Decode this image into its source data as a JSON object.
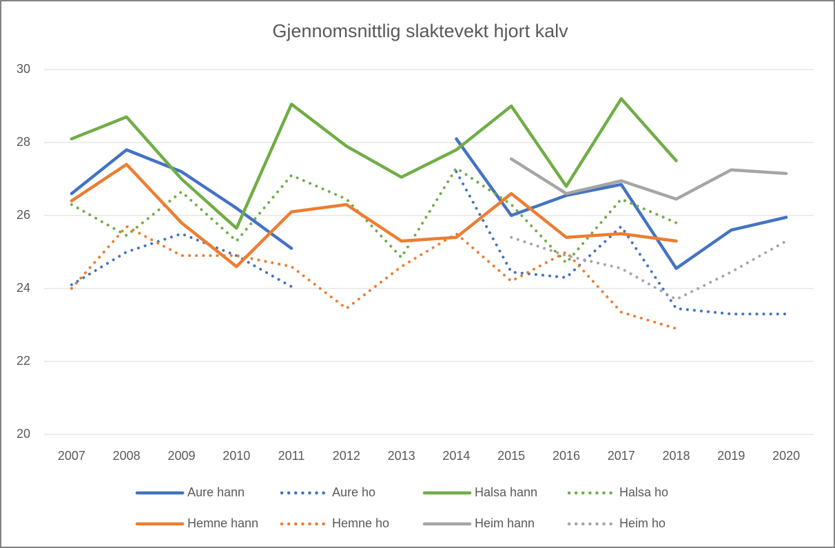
{
  "chart_data": {
    "type": "line",
    "title": "Gjennomsnittlig slaktevekt hjort kalv",
    "categories": [
      "2007",
      "2008",
      "2009",
      "2010",
      "2011",
      "2012",
      "2013",
      "2014",
      "2015",
      "2016",
      "2017",
      "2018",
      "2019",
      "2020"
    ],
    "ylim": [
      20,
      30
    ],
    "yticks": [
      20,
      22,
      24,
      26,
      28,
      30
    ],
    "grid": true,
    "legend": "bottom",
    "series": [
      {
        "name": "Aure hann",
        "color": "#4472c4",
        "dash": "solid",
        "values": [
          26.6,
          27.8,
          27.2,
          26.2,
          25.1,
          null,
          null,
          28.1,
          26.0,
          26.55,
          26.85,
          24.55,
          25.6,
          25.95
        ]
      },
      {
        "name": "Aure ho",
        "color": "#4472c4",
        "dash": "dot",
        "values": [
          24.1,
          25.0,
          25.5,
          24.9,
          24.05,
          null,
          null,
          27.2,
          24.45,
          24.3,
          25.7,
          23.45,
          23.3,
          23.3
        ]
      },
      {
        "name": "Halsa hann",
        "color": "#70ad47",
        "dash": "solid",
        "values": [
          28.1,
          28.7,
          27.0,
          25.65,
          29.05,
          27.9,
          27.05,
          27.8,
          29.0,
          26.8,
          29.2,
          27.5,
          null,
          null
        ]
      },
      {
        "name": "Halsa ho",
        "color": "#70ad47",
        "dash": "dot",
        "values": [
          26.3,
          25.45,
          26.65,
          25.3,
          27.1,
          26.45,
          24.85,
          27.3,
          26.3,
          24.7,
          26.45,
          25.8,
          null,
          null
        ]
      },
      {
        "name": "Hemne hann",
        "color": "#ed7d31",
        "dash": "solid",
        "values": [
          26.4,
          27.4,
          25.8,
          24.6,
          26.1,
          26.3,
          25.3,
          25.4,
          26.6,
          25.4,
          25.5,
          25.3,
          null,
          null
        ]
      },
      {
        "name": "Hemne ho",
        "color": "#ed7d31",
        "dash": "dot",
        "values": [
          24.0,
          25.7,
          24.9,
          24.9,
          24.6,
          23.45,
          24.6,
          25.5,
          24.2,
          25.0,
          23.35,
          22.9,
          null,
          null
        ]
      },
      {
        "name": "Heim hann",
        "color": "#a5a5a5",
        "dash": "solid",
        "values": [
          null,
          null,
          null,
          null,
          null,
          null,
          null,
          null,
          27.55,
          26.6,
          26.95,
          26.45,
          27.25,
          27.15
        ]
      },
      {
        "name": "Heim ho",
        "color": "#a5a5a5",
        "dash": "dot",
        "values": [
          null,
          null,
          null,
          null,
          null,
          null,
          null,
          null,
          25.4,
          24.9,
          24.55,
          23.7,
          24.45,
          25.3
        ]
      }
    ]
  }
}
